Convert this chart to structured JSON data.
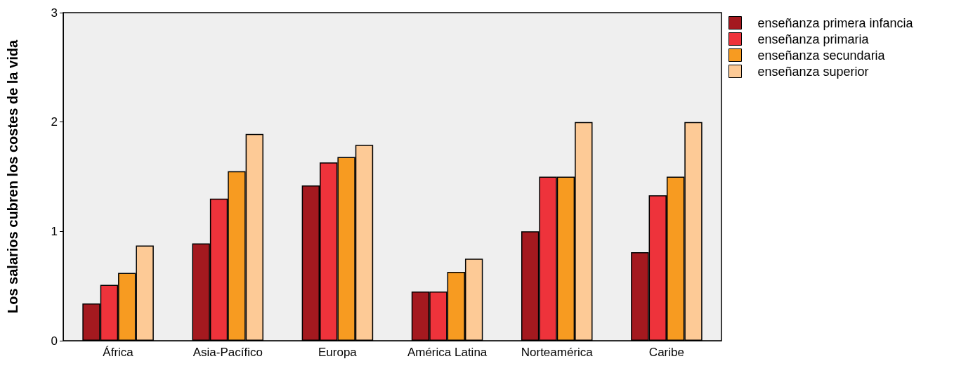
{
  "chart_data": {
    "type": "bar",
    "ylabel": "Los salarios cubren los costes de la vida",
    "categories": [
      "África",
      "Asia-Pacífico",
      "Europa",
      "América Latina",
      "Norteamérica",
      "Caribe"
    ],
    "series": [
      {
        "name": "enseñanza primera infancia",
        "color": "#a4191f",
        "values": [
          0.34,
          0.89,
          1.42,
          0.45,
          1.0,
          0.81
        ]
      },
      {
        "name": "enseñanza primaria",
        "color": "#ee333b",
        "values": [
          0.51,
          1.3,
          1.63,
          0.45,
          1.5,
          1.33
        ]
      },
      {
        "name": "enseñanza secundaria",
        "color": "#f79b21",
        "values": [
          0.62,
          1.55,
          1.68,
          0.63,
          1.5,
          1.5
        ]
      },
      {
        "name": "enseñanza superior",
        "color": "#fdca96",
        "values": [
          0.87,
          1.89,
          1.79,
          0.75,
          2.0,
          2.0
        ]
      }
    ],
    "ylim": [
      0,
      3
    ],
    "yticks": [
      0,
      1,
      2,
      3
    ],
    "grid": false,
    "legend": "top right"
  }
}
